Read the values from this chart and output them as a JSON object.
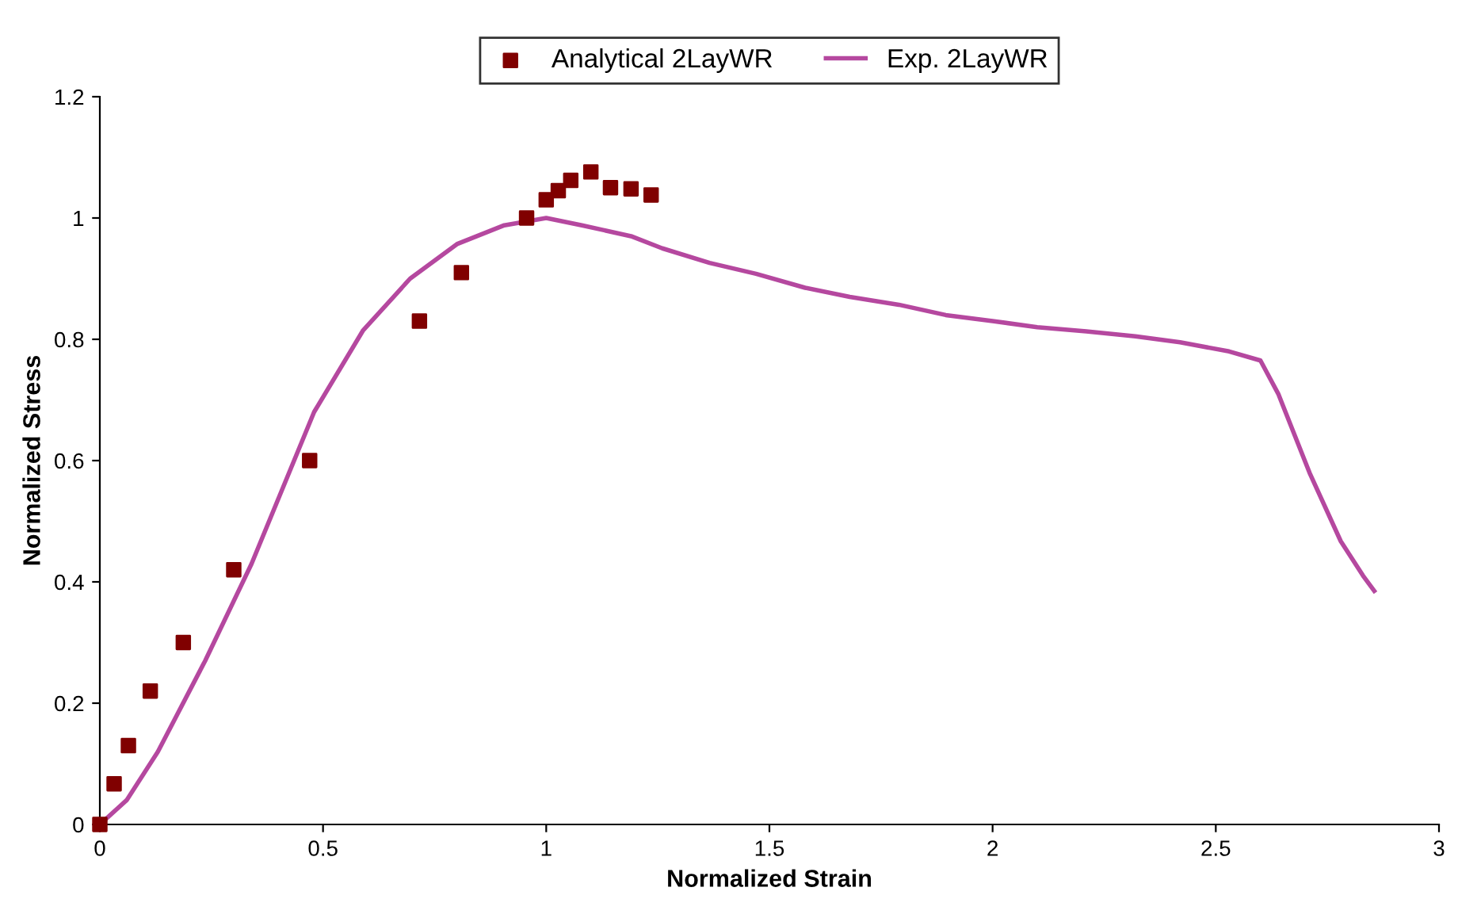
{
  "chart_data": {
    "type": "scatter",
    "xlabel": "Normalized Strain",
    "ylabel": "Normalized Stress",
    "xlim": [
      0,
      3
    ],
    "xticks": [
      0,
      0.5,
      1,
      1.5,
      2,
      2.5,
      3
    ],
    "ylim": [
      0,
      1.2
    ],
    "yticks": [
      0,
      0.2,
      0.4,
      0.6,
      0.8,
      1,
      1.2
    ],
    "grid": false,
    "legend": "top",
    "series": [
      {
        "name": "Analytical 2LayWR",
        "color": "#800000",
        "marker": "square",
        "x": [
          0,
          0.032,
          0.064,
          0.113,
          0.187,
          0.3,
          0.47,
          0.716,
          0.81,
          0.956,
          1.0,
          1.027,
          1.055,
          1.1,
          1.144,
          1.19,
          1.235
        ],
        "values": [
          0,
          0.067,
          0.13,
          0.22,
          0.3,
          0.42,
          0.6,
          0.83,
          0.91,
          1.0,
          1.03,
          1.045,
          1.062,
          1.076,
          1.05,
          1.048,
          1.038
        ]
      },
      {
        "name": "Exp. 2LayWR",
        "type": "line",
        "color": "#b5489f",
        "marker": "none",
        "line_style": "solid",
        "x": [
          0,
          0.06,
          0.13,
          0.236,
          0.34,
          0.48,
          0.59,
          0.695,
          0.8,
          0.906,
          1.0,
          1.08,
          1.19,
          1.26,
          1.366,
          1.47,
          1.58,
          1.68,
          1.79,
          1.895,
          2.0,
          2.1,
          2.21,
          2.32,
          2.42,
          2.53,
          2.6,
          2.64,
          2.71,
          2.78,
          2.83,
          2.855
        ],
        "values": [
          0,
          0.04,
          0.12,
          0.27,
          0.43,
          0.68,
          0.815,
          0.9,
          0.957,
          0.988,
          1.0,
          0.988,
          0.97,
          0.95,
          0.926,
          0.908,
          0.885,
          0.87,
          0.857,
          0.84,
          0.83,
          0.82,
          0.813,
          0.805,
          0.795,
          0.78,
          0.765,
          0.71,
          0.58,
          0.467,
          0.41,
          0.385
        ]
      }
    ]
  }
}
